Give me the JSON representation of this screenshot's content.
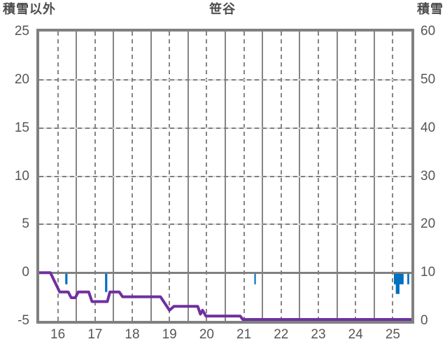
{
  "header": {
    "left_axis_title": "積雪以外",
    "chart_title": "笹谷",
    "right_axis_title": "積雪"
  },
  "colors": {
    "line": "#7030A0",
    "bar": "#0070C0",
    "grid": "#858585",
    "grid_light": "#dcdcdc",
    "border": "#808080",
    "text": "#565656",
    "background": "#ffffff"
  },
  "chart_data": {
    "type": "line+bar",
    "title": "笹谷",
    "x_axis": {
      "unit": "day of month",
      "range": [
        16,
        26
      ],
      "tick_labels": [
        "16",
        "17",
        "18",
        "19",
        "20",
        "21",
        "22",
        "23",
        "24",
        "25"
      ],
      "tick_positions": [
        16.5,
        17.5,
        18.5,
        19.5,
        20.5,
        21.5,
        22.5,
        23.5,
        24.5,
        25.5
      ],
      "solid_gridlines_at": [
        17,
        18,
        19,
        20,
        21,
        22,
        23,
        24,
        25
      ],
      "dashed_gridlines_at": [
        16.5,
        17.5,
        18.5,
        19.5,
        20.5,
        21.5,
        22.5,
        23.5,
        24.5,
        25.5
      ]
    },
    "y_left_axis": {
      "label": "積雪以外",
      "range": [
        -5,
        25
      ],
      "tick_labels": [
        "25",
        "20",
        "15",
        "10",
        "5",
        "0",
        "-5"
      ],
      "tick_values": [
        25,
        20,
        15,
        10,
        5,
        0,
        -5
      ],
      "dashed_gridlines_at": [
        20,
        15,
        10,
        5
      ],
      "zero_baseline": 0
    },
    "y_right_axis": {
      "label": "積雪",
      "range": [
        0,
        60
      ],
      "tick_labels": [
        "60",
        "50",
        "40",
        "30",
        "20",
        "10",
        "0"
      ],
      "tick_values": [
        60,
        50,
        40,
        30,
        20,
        10,
        0
      ]
    },
    "series": [
      {
        "name": "積雪以外",
        "type": "line",
        "axis": "left",
        "color": "#7030A0",
        "points": [
          [
            16.0,
            0
          ],
          [
            16.3,
            0
          ],
          [
            16.55,
            -2
          ],
          [
            16.78,
            -2
          ],
          [
            16.86,
            -2.6
          ],
          [
            16.97,
            -2.6
          ],
          [
            17.05,
            -2
          ],
          [
            17.33,
            -2
          ],
          [
            17.42,
            -3
          ],
          [
            17.83,
            -3
          ],
          [
            17.9,
            -2
          ],
          [
            18.15,
            -2
          ],
          [
            18.24,
            -2.5
          ],
          [
            19.26,
            -2.5
          ],
          [
            19.5,
            -3.9
          ],
          [
            19.62,
            -3.5
          ],
          [
            20.26,
            -3.5
          ],
          [
            20.33,
            -4.3
          ],
          [
            20.39,
            -3.9
          ],
          [
            20.48,
            -4.5
          ],
          [
            21.4,
            -4.5
          ],
          [
            21.47,
            -5
          ],
          [
            26.0,
            -5
          ]
        ]
      },
      {
        "name": "積雪",
        "type": "bar",
        "axis": "right",
        "color": "#0070C0",
        "baseline_right_value": 10,
        "bars": [
          {
            "day_start": 16.7,
            "day_end": 16.76,
            "depth": 2.2
          },
          {
            "day_start": 17.77,
            "day_end": 17.83,
            "depth": 3.8
          },
          {
            "day_start": 21.78,
            "day_end": 21.82,
            "depth": 2.2
          },
          {
            "day_start": 25.53,
            "day_end": 25.79,
            "depth": 2.2
          },
          {
            "day_start": 25.58,
            "day_end": 25.68,
            "depth": 4.2
          },
          {
            "day_start": 25.89,
            "day_end": 25.94,
            "depth": 2.2
          }
        ]
      }
    ]
  }
}
